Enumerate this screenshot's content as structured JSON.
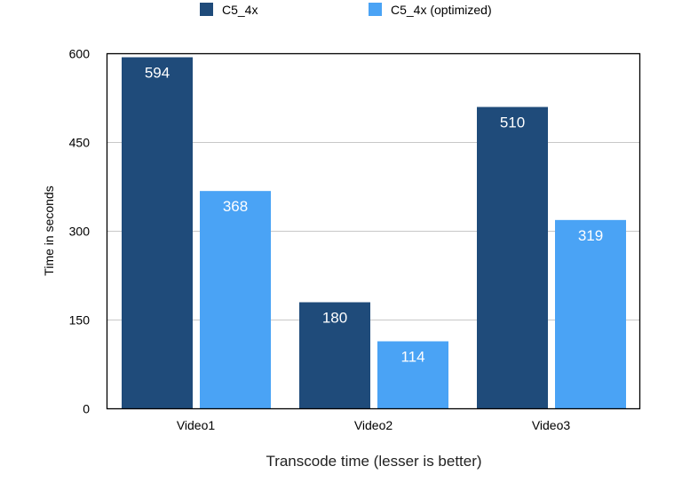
{
  "chart_data": {
    "type": "bar",
    "title": "",
    "xlabel": "Transcode time (lesser is better)",
    "ylabel": "Time in seconds",
    "categories": [
      "Video1",
      "Video2",
      "Video3"
    ],
    "series": [
      {
        "name": "C5_4x",
        "values": [
          594,
          180,
          510
        ],
        "color": "#1f4b7a"
      },
      {
        "name": "C5_4x (optimized)",
        "values": [
          368,
          114,
          319
        ],
        "color": "#4aa3f5"
      }
    ],
    "ylim": [
      0,
      600
    ],
    "yticks": [
      0,
      150,
      300,
      450,
      600
    ],
    "grid": true,
    "legend": "top-center",
    "data_labels": true
  }
}
